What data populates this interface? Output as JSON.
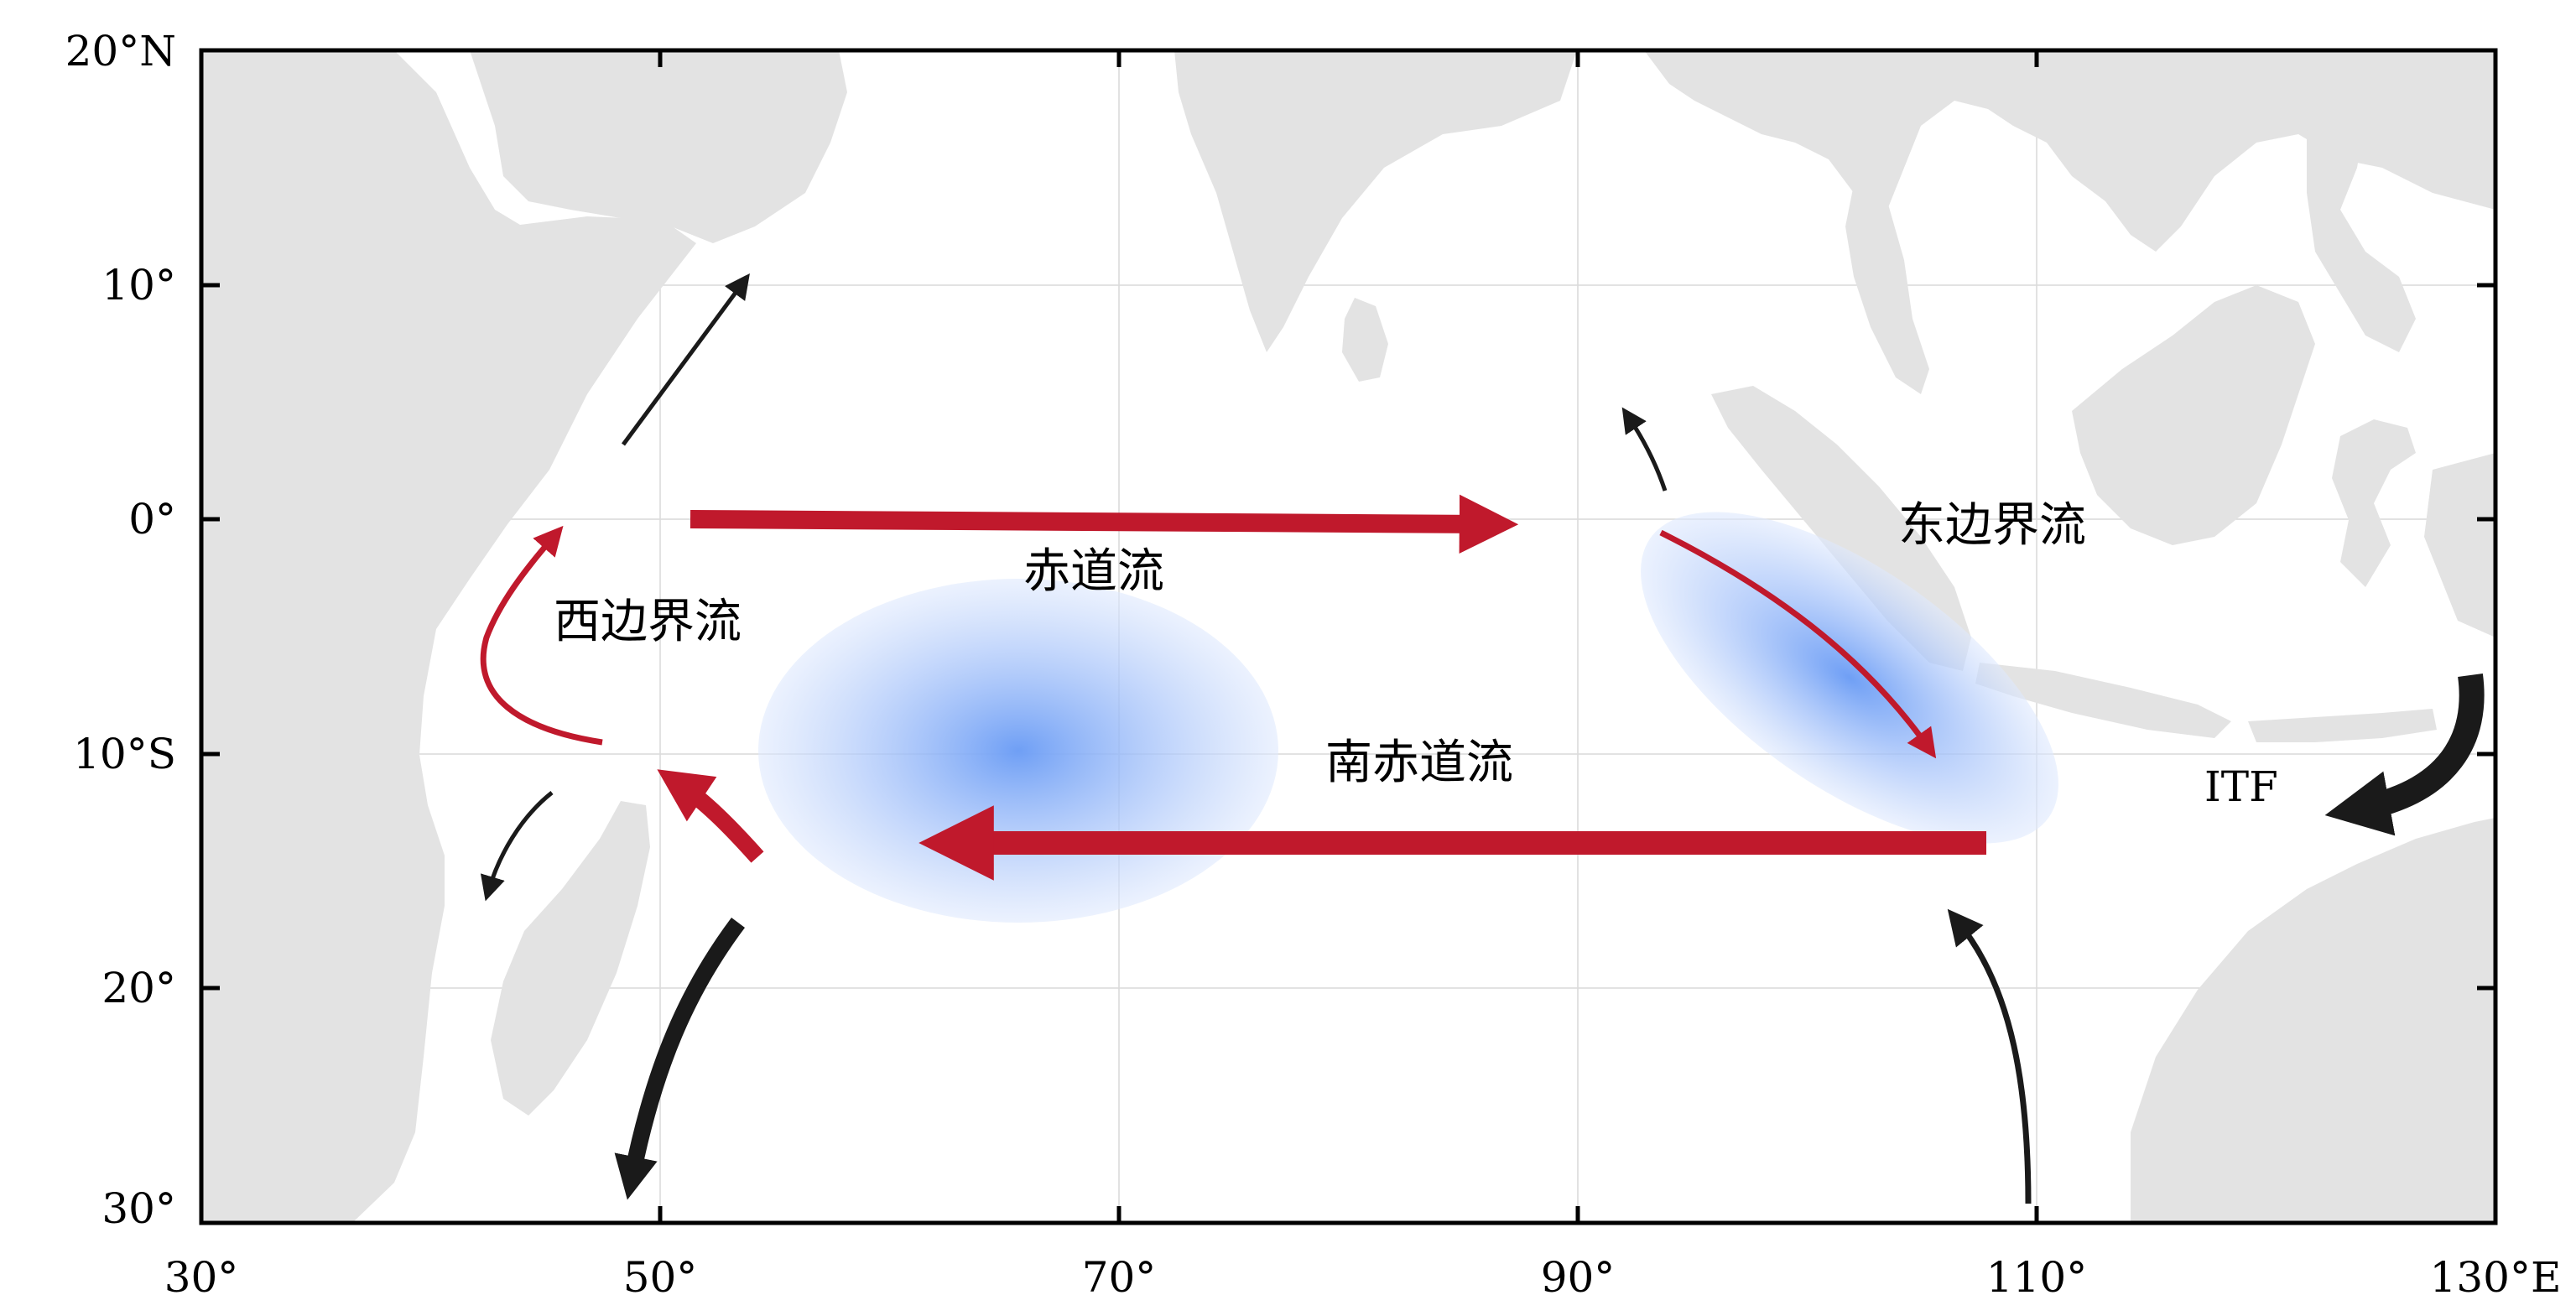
{
  "map": {
    "lon_ticks": [
      "30°",
      "50°",
      "70°",
      "90°",
      "110°",
      "130°E"
    ],
    "lat_ticks": [
      "20°N",
      "10°",
      "0°",
      "10°S",
      "20°",
      "30°"
    ],
    "labels": {
      "equatorial_current": "赤道流",
      "south_equatorial_current": "南赤道流",
      "western_boundary_current": "西边界流",
      "eastern_boundary_current": "东边界流",
      "itf": "ITF"
    },
    "colors": {
      "warm_current": "#c0192c",
      "other_flow": "#1a1a1a",
      "land": "#e3e3e3",
      "upwelling": "#6f9ff5"
    }
  }
}
